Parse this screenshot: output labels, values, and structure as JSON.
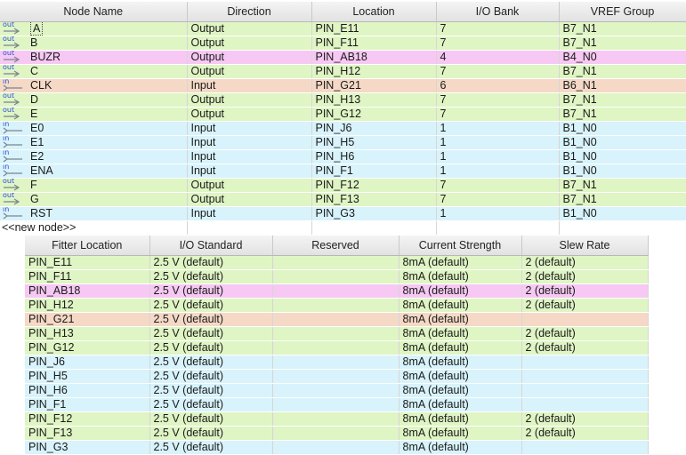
{
  "pins": {
    "headers": [
      "Node Name",
      "Direction",
      "Location",
      "I/O Bank",
      "VREF Group"
    ],
    "rows": [
      {
        "dir_icon": "out",
        "name": "A",
        "direction": "Output",
        "location": "PIN_E11",
        "bank": "7",
        "vref": "B7_N1"
      },
      {
        "dir_icon": "out",
        "name": "B",
        "direction": "Output",
        "location": "PIN_F11",
        "bank": "7",
        "vref": "B7_N1"
      },
      {
        "dir_icon": "out",
        "name": "BUZR",
        "direction": "Output",
        "location": "PIN_AB18",
        "bank": "4",
        "vref": "B4_N0"
      },
      {
        "dir_icon": "out",
        "name": "C",
        "direction": "Output",
        "location": "PIN_H12",
        "bank": "7",
        "vref": "B7_N1"
      },
      {
        "dir_icon": "in",
        "name": "CLK",
        "direction": "Input",
        "location": "PIN_G21",
        "bank": "6",
        "vref": "B6_N1"
      },
      {
        "dir_icon": "out",
        "name": "D",
        "direction": "Output",
        "location": "PIN_H13",
        "bank": "7",
        "vref": "B7_N1"
      },
      {
        "dir_icon": "out",
        "name": "E",
        "direction": "Output",
        "location": "PIN_G12",
        "bank": "7",
        "vref": "B7_N1"
      },
      {
        "dir_icon": "in",
        "name": "E0",
        "direction": "Input",
        "location": "PIN_J6",
        "bank": "1",
        "vref": "B1_N0"
      },
      {
        "dir_icon": "in",
        "name": "E1",
        "direction": "Input",
        "location": "PIN_H5",
        "bank": "1",
        "vref": "B1_N0"
      },
      {
        "dir_icon": "in",
        "name": "E2",
        "direction": "Input",
        "location": "PIN_H6",
        "bank": "1",
        "vref": "B1_N0"
      },
      {
        "dir_icon": "in",
        "name": "ENA",
        "direction": "Input",
        "location": "PIN_F1",
        "bank": "1",
        "vref": "B1_N0"
      },
      {
        "dir_icon": "out",
        "name": "F",
        "direction": "Output",
        "location": "PIN_F12",
        "bank": "7",
        "vref": "B7_N1"
      },
      {
        "dir_icon": "out",
        "name": "G",
        "direction": "Output",
        "location": "PIN_F13",
        "bank": "7",
        "vref": "B7_N1"
      },
      {
        "dir_icon": "in",
        "name": "RST",
        "direction": "Input",
        "location": "PIN_G3",
        "bank": "1",
        "vref": "B1_N0"
      }
    ],
    "new_node_label": "<<new node>>"
  },
  "fitter": {
    "headers": [
      "Fitter Location",
      "I/O Standard",
      "Reserved",
      "Current Strength",
      "Slew Rate"
    ],
    "rows": [
      {
        "location": "PIN_E11",
        "standard": "2.5 V (default)",
        "reserved": "",
        "strength": "8mA (default)",
        "slew": "2 (default)"
      },
      {
        "location": "PIN_F11",
        "standard": "2.5 V (default)",
        "reserved": "",
        "strength": "8mA (default)",
        "slew": "2 (default)"
      },
      {
        "location": "PIN_AB18",
        "standard": "2.5 V (default)",
        "reserved": "",
        "strength": "8mA (default)",
        "slew": "2 (default)"
      },
      {
        "location": "PIN_H12",
        "standard": "2.5 V (default)",
        "reserved": "",
        "strength": "8mA (default)",
        "slew": "2 (default)"
      },
      {
        "location": "PIN_G21",
        "standard": "2.5 V (default)",
        "reserved": "",
        "strength": "8mA (default)",
        "slew": ""
      },
      {
        "location": "PIN_H13",
        "standard": "2.5 V (default)",
        "reserved": "",
        "strength": "8mA (default)",
        "slew": "2 (default)"
      },
      {
        "location": "PIN_G12",
        "standard": "2.5 V (default)",
        "reserved": "",
        "strength": "8mA (default)",
        "slew": "2 (default)"
      },
      {
        "location": "PIN_J6",
        "standard": "2.5 V (default)",
        "reserved": "",
        "strength": "8mA (default)",
        "slew": ""
      },
      {
        "location": "PIN_H5",
        "standard": "2.5 V (default)",
        "reserved": "",
        "strength": "8mA (default)",
        "slew": ""
      },
      {
        "location": "PIN_H6",
        "standard": "2.5 V (default)",
        "reserved": "",
        "strength": "8mA (default)",
        "slew": ""
      },
      {
        "location": "PIN_F1",
        "standard": "2.5 V (default)",
        "reserved": "",
        "strength": "8mA (default)",
        "slew": ""
      },
      {
        "location": "PIN_F12",
        "standard": "2.5 V (default)",
        "reserved": "",
        "strength": "8mA (default)",
        "slew": "2 (default)"
      },
      {
        "location": "PIN_F13",
        "standard": "2.5 V (default)",
        "reserved": "",
        "strength": "8mA (default)",
        "slew": "2 (default)"
      },
      {
        "location": "PIN_G3",
        "standard": "2.5 V (default)",
        "reserved": "",
        "strength": "8mA (default)",
        "slew": ""
      }
    ]
  },
  "colors": {
    "output_row": "#dff5c4",
    "input_row": "#d8f3fb",
    "pink_row": "#f6c8f3",
    "salmon_row": "#f5d9c6",
    "icon_label": "#2a4fd8"
  }
}
